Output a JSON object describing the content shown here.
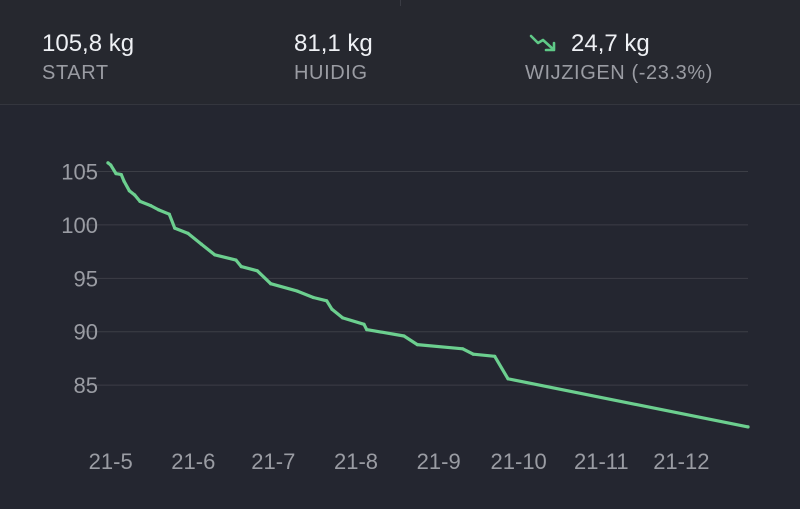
{
  "stats": {
    "start": {
      "value": "105,8 kg",
      "label": "START"
    },
    "current": {
      "value": "81,1 kg",
      "label": "HUIDIG"
    },
    "change": {
      "value": "24,7 kg",
      "label": "WIJZIGEN (-23.3%)",
      "trend_icon": "trend-down-icon",
      "trend_color": "#5fc987"
    }
  },
  "colors": {
    "background": "#242630",
    "line": "#6ccf8f",
    "grid": "#3c3e46",
    "tick_text": "#9a9ca3"
  },
  "chart_data": {
    "type": "line",
    "title": "",
    "xlabel": "",
    "ylabel": "",
    "x_ticks": [
      {
        "label": "21-5",
        "date": "2021-05-01"
      },
      {
        "label": "21-6",
        "date": "2021-06-01"
      },
      {
        "label": "21-7",
        "date": "2021-07-01"
      },
      {
        "label": "21-8",
        "date": "2021-08-01"
      },
      {
        "label": "21-9",
        "date": "2021-09-01"
      },
      {
        "label": "21-10",
        "date": "2021-10-01"
      },
      {
        "label": "21-11",
        "date": "2021-11-01"
      },
      {
        "label": "21-12",
        "date": "2021-12-01"
      }
    ],
    "xlim": [
      "2021-04-30",
      "2021-12-26"
    ],
    "y_ticks": [
      85,
      90,
      95,
      100,
      105
    ],
    "ylim": [
      80.9,
      107.1
    ],
    "grid": true,
    "legend": "none",
    "series": [
      {
        "values": [
          {
            "x": "2021-04-30",
            "y": 105.8
          },
          {
            "x": "2021-05-01",
            "y": 105.6
          },
          {
            "x": "2021-05-03",
            "y": 104.8
          },
          {
            "x": "2021-05-05",
            "y": 104.7
          },
          {
            "x": "2021-05-06",
            "y": 104.1
          },
          {
            "x": "2021-05-08",
            "y": 103.2
          },
          {
            "x": "2021-05-10",
            "y": 102.8
          },
          {
            "x": "2021-05-12",
            "y": 102.2
          },
          {
            "x": "2021-05-16",
            "y": 101.8
          },
          {
            "x": "2021-05-19",
            "y": 101.4
          },
          {
            "x": "2021-05-23",
            "y": 101.0
          },
          {
            "x": "2021-05-25",
            "y": 99.7
          },
          {
            "x": "2021-05-30",
            "y": 99.2
          },
          {
            "x": "2021-06-04",
            "y": 98.2
          },
          {
            "x": "2021-06-09",
            "y": 97.2
          },
          {
            "x": "2021-06-17",
            "y": 96.7
          },
          {
            "x": "2021-06-19",
            "y": 96.1
          },
          {
            "x": "2021-06-25",
            "y": 95.7
          },
          {
            "x": "2021-06-30",
            "y": 94.5
          },
          {
            "x": "2021-07-10",
            "y": 93.8
          },
          {
            "x": "2021-07-16",
            "y": 93.2
          },
          {
            "x": "2021-07-21",
            "y": 92.9
          },
          {
            "x": "2021-07-23",
            "y": 92.1
          },
          {
            "x": "2021-07-27",
            "y": 91.3
          },
          {
            "x": "2021-08-04",
            "y": 90.7
          },
          {
            "x": "2021-08-05",
            "y": 90.2
          },
          {
            "x": "2021-08-19",
            "y": 89.6
          },
          {
            "x": "2021-08-24",
            "y": 88.8
          },
          {
            "x": "2021-09-10",
            "y": 88.4
          },
          {
            "x": "2021-09-14",
            "y": 87.9
          },
          {
            "x": "2021-09-22",
            "y": 87.7
          },
          {
            "x": "2021-09-27",
            "y": 85.6
          },
          {
            "x": "2021-12-26",
            "y": 81.1
          }
        ]
      }
    ]
  }
}
